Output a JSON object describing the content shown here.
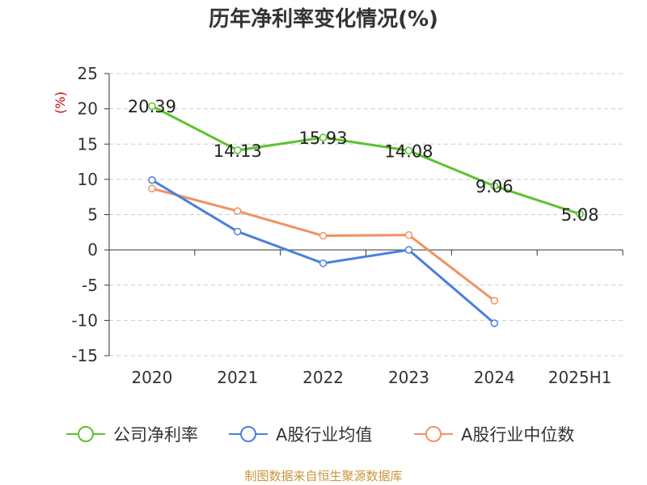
{
  "chart_data": {
    "type": "line",
    "title": "历年净利率变化情况(%)",
    "ylabel": "(%)",
    "xlabel": "",
    "categories": [
      "2020",
      "2021",
      "2022",
      "2023",
      "2024",
      "2025H1"
    ],
    "ylim": [
      -15,
      25
    ],
    "yticks": [
      "25",
      "20",
      "15",
      "10",
      "5",
      "0",
      "-5",
      "-10",
      "-15"
    ],
    "grid": true,
    "legend_position": "bottom",
    "series": [
      {
        "name": "公司净利率",
        "color": "#5cc22f",
        "values": [
          20.39,
          14.13,
          15.93,
          14.08,
          9.06,
          5.08
        ],
        "labels": [
          "20.39",
          "14.13",
          "15.93",
          "14.08",
          "9.06",
          "5.08"
        ]
      },
      {
        "name": "A股行业均值",
        "color": "#4a7fde",
        "values": [
          9.9,
          2.6,
          -1.9,
          0.0,
          -10.4,
          null
        ],
        "labels": []
      },
      {
        "name": "A股行业中位数",
        "color": "#f29161",
        "values": [
          8.7,
          5.5,
          2.0,
          2.1,
          -7.2,
          null
        ],
        "labels": []
      }
    ]
  },
  "source_text": "制图数据来自恒生聚源数据库"
}
